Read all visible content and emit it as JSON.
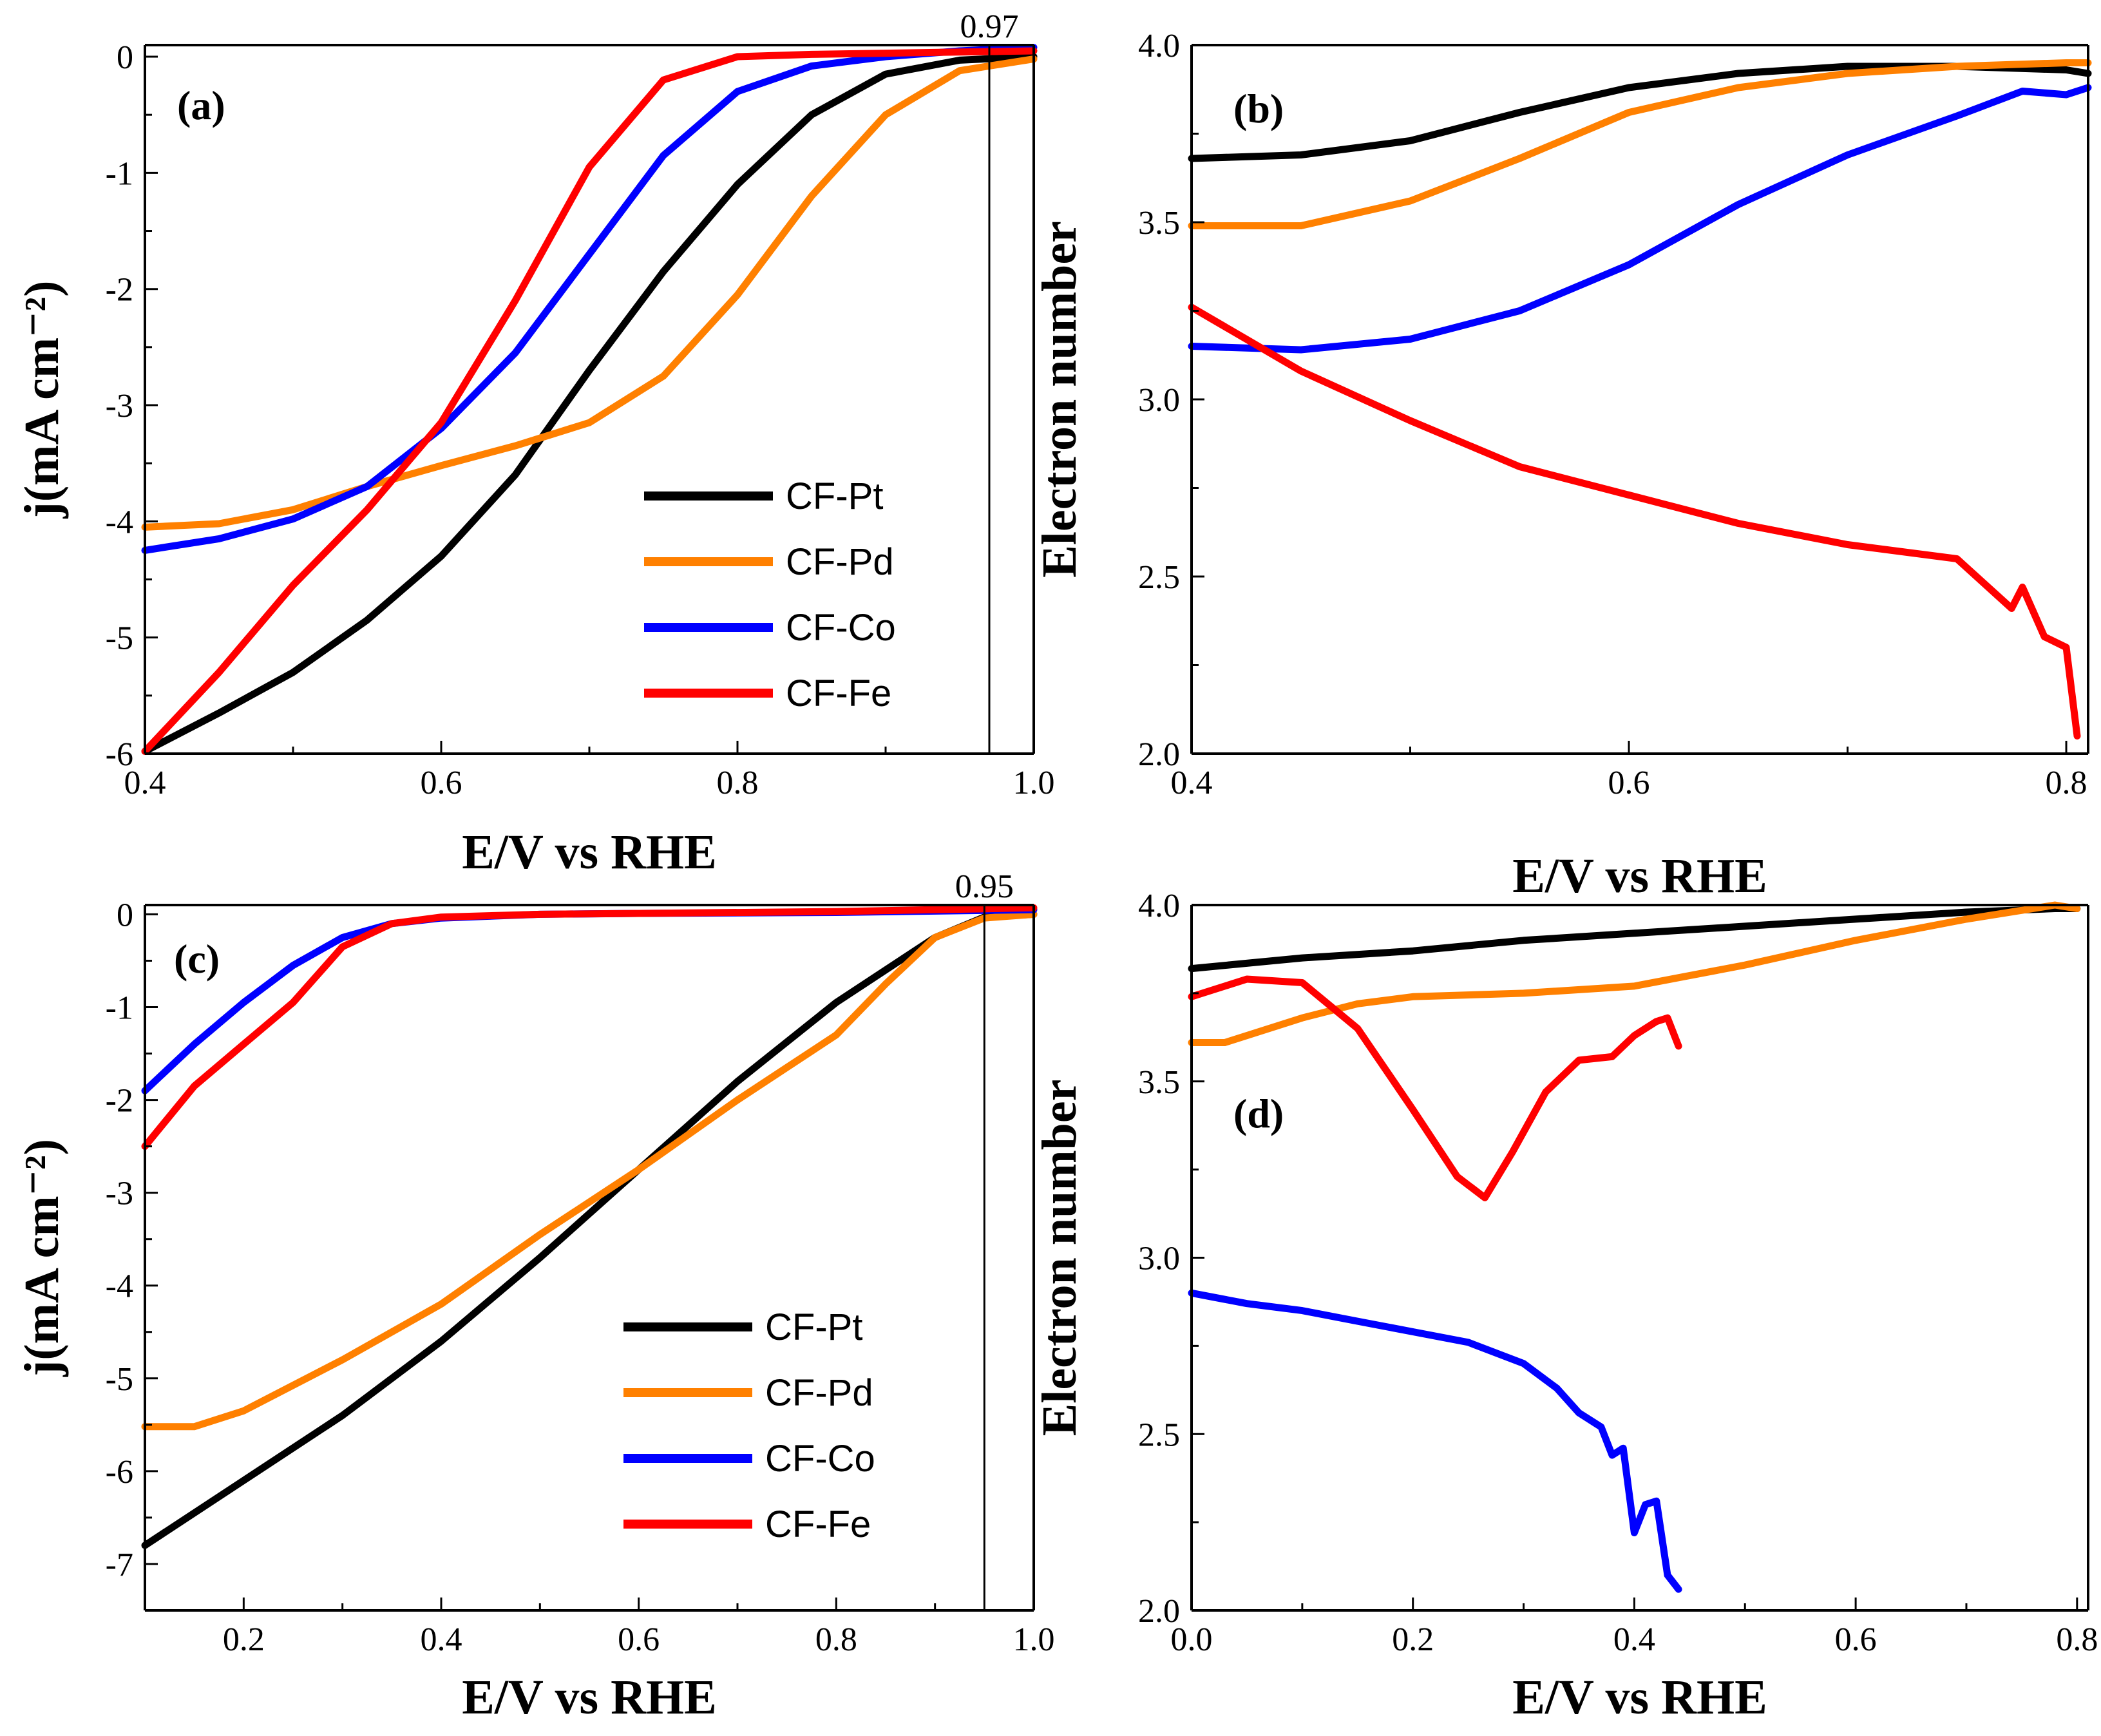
{
  "colors": {
    "black": "#000000",
    "orange": "#ff8000",
    "blue": "#0000ff",
    "red": "#ff0000"
  },
  "chart_data": [
    {
      "id": "a",
      "type": "line",
      "panel_label": "(a)",
      "xlabel": "E/V vs RHE",
      "ylabel": "j(mA cm⁻²)",
      "xlim": [
        0.4,
        1.0
      ],
      "ylim": [
        -6,
        0.1
      ],
      "xticks": [
        0.4,
        0.6,
        0.8,
        1.0
      ],
      "xtick_labels": [
        "0.4",
        "0.6",
        "0.8",
        "1.0"
      ],
      "yticks": [
        0,
        -1,
        -2,
        -3,
        -4,
        -5,
        -6
      ],
      "ytick_labels": [
        "0",
        "-1",
        "-2",
        "-3",
        "-4",
        "-5",
        "-6"
      ],
      "legend": [
        "CF-Pt",
        "CF-Pd",
        "CF-Co",
        "CF-Fe"
      ],
      "annotation": {
        "x": 0.97,
        "text": "0.97"
      },
      "series": [
        {
          "name": "CF-Pt",
          "color": "black",
          "x": [
            0.4,
            0.45,
            0.5,
            0.55,
            0.6,
            0.65,
            0.7,
            0.75,
            0.8,
            0.85,
            0.9,
            0.95,
            1.0
          ],
          "y": [
            -5.98,
            -5.65,
            -5.3,
            -4.85,
            -4.3,
            -3.6,
            -2.7,
            -1.85,
            -1.1,
            -0.5,
            -0.15,
            -0.03,
            0.0
          ]
        },
        {
          "name": "CF-Pd",
          "color": "orange",
          "x": [
            0.4,
            0.45,
            0.5,
            0.55,
            0.6,
            0.65,
            0.7,
            0.75,
            0.8,
            0.85,
            0.9,
            0.95,
            1.0
          ],
          "y": [
            -4.05,
            -4.02,
            -3.9,
            -3.7,
            -3.52,
            -3.35,
            -3.15,
            -2.75,
            -2.05,
            -1.2,
            -0.5,
            -0.12,
            -0.02
          ]
        },
        {
          "name": "CF-Co",
          "color": "blue",
          "x": [
            0.4,
            0.45,
            0.5,
            0.55,
            0.6,
            0.65,
            0.7,
            0.75,
            0.8,
            0.85,
            0.9,
            0.95,
            1.0
          ],
          "y": [
            -4.25,
            -4.15,
            -3.98,
            -3.7,
            -3.2,
            -2.55,
            -1.7,
            -0.85,
            -0.3,
            -0.08,
            0.0,
            0.05,
            0.08
          ]
        },
        {
          "name": "CF-Fe",
          "color": "red",
          "x": [
            0.4,
            0.45,
            0.5,
            0.55,
            0.6,
            0.65,
            0.7,
            0.75,
            0.8,
            0.85,
            0.9,
            0.95,
            1.0
          ],
          "y": [
            -5.98,
            -5.3,
            -4.55,
            -3.9,
            -3.15,
            -2.1,
            -0.95,
            -0.2,
            0.0,
            0.02,
            0.03,
            0.04,
            0.05
          ]
        }
      ]
    },
    {
      "id": "b",
      "type": "line",
      "panel_label": "(b)",
      "xlabel": "E/V vs RHE",
      "ylabel": "Electron number",
      "xlim": [
        0.4,
        0.81
      ],
      "ylim": [
        2.0,
        4.0
      ],
      "xticks": [
        0.4,
        0.6,
        0.8
      ],
      "xtick_labels": [
        "0.4",
        "0.6",
        "0.8"
      ],
      "yticks": [
        2.0,
        2.5,
        3.0,
        3.5,
        4.0
      ],
      "ytick_labels": [
        "2.0",
        "2.5",
        "3.0",
        "3.5",
        "4.0"
      ],
      "series": [
        {
          "name": "CF-Pt",
          "color": "black",
          "x": [
            0.4,
            0.45,
            0.5,
            0.55,
            0.6,
            0.65,
            0.7,
            0.75,
            0.8,
            0.81
          ],
          "y": [
            3.68,
            3.69,
            3.73,
            3.81,
            3.88,
            3.92,
            3.94,
            3.94,
            3.93,
            3.92
          ]
        },
        {
          "name": "CF-Pd",
          "color": "orange",
          "x": [
            0.4,
            0.45,
            0.5,
            0.55,
            0.6,
            0.65,
            0.7,
            0.75,
            0.8,
            0.81
          ],
          "y": [
            3.49,
            3.49,
            3.56,
            3.68,
            3.81,
            3.88,
            3.92,
            3.94,
            3.95,
            3.95
          ]
        },
        {
          "name": "CF-Co",
          "color": "blue",
          "x": [
            0.4,
            0.45,
            0.5,
            0.55,
            0.6,
            0.65,
            0.7,
            0.75,
            0.78,
            0.8,
            0.81
          ],
          "y": [
            3.15,
            3.14,
            3.17,
            3.25,
            3.38,
            3.55,
            3.69,
            3.8,
            3.87,
            3.86,
            3.88
          ]
        },
        {
          "name": "CF-Fe",
          "color": "red",
          "x": [
            0.4,
            0.45,
            0.5,
            0.55,
            0.6,
            0.65,
            0.7,
            0.75,
            0.775,
            0.78,
            0.79,
            0.8,
            0.805
          ],
          "y": [
            3.26,
            3.08,
            2.94,
            2.81,
            2.73,
            2.65,
            2.59,
            2.55,
            2.41,
            2.47,
            2.33,
            2.3,
            2.05
          ]
        }
      ]
    },
    {
      "id": "c",
      "type": "line",
      "panel_label": "(c)",
      "xlabel": "E/V vs RHE",
      "ylabel": "j(mA cm⁻²)",
      "xlim": [
        0.1,
        1.0
      ],
      "ylim": [
        -7.5,
        0.1
      ],
      "xticks": [
        0.2,
        0.4,
        0.6,
        0.8,
        1.0
      ],
      "xtick_labels": [
        "0.2",
        "0.4",
        "0.6",
        "0.8",
        "1.0"
      ],
      "yticks": [
        0,
        -1,
        -2,
        -3,
        -4,
        -5,
        -6,
        -7
      ],
      "ytick_labels": [
        "0",
        "-1",
        "-2",
        "-3",
        "-4",
        "-5",
        "-6",
        "-7"
      ],
      "legend": [
        "CF-Pt",
        "CF-Pd",
        "CF-Co",
        "CF-Fe"
      ],
      "annotation": {
        "x": 0.95,
        "text": "0.95"
      },
      "series": [
        {
          "name": "CF-Pt",
          "color": "black",
          "x": [
            0.1,
            0.2,
            0.3,
            0.4,
            0.5,
            0.6,
            0.7,
            0.8,
            0.9,
            0.95,
            1.0
          ],
          "y": [
            -6.8,
            -6.1,
            -5.4,
            -4.6,
            -3.7,
            -2.75,
            -1.8,
            -0.95,
            -0.25,
            -0.03,
            0.0
          ]
        },
        {
          "name": "CF-Pd",
          "color": "orange",
          "x": [
            0.1,
            0.15,
            0.2,
            0.3,
            0.4,
            0.5,
            0.6,
            0.7,
            0.8,
            0.85,
            0.9,
            0.95,
            1.0
          ],
          "y": [
            -5.52,
            -5.52,
            -5.35,
            -4.8,
            -4.2,
            -3.45,
            -2.75,
            -2.0,
            -1.3,
            -0.75,
            -0.25,
            -0.04,
            0.0
          ]
        },
        {
          "name": "CF-Co",
          "color": "blue",
          "x": [
            0.1,
            0.15,
            0.2,
            0.25,
            0.3,
            0.35,
            0.4,
            0.5,
            0.6,
            0.8,
            1.0
          ],
          "y": [
            -1.9,
            -1.4,
            -0.95,
            -0.55,
            -0.25,
            -0.1,
            -0.04,
            0.0,
            0.01,
            0.02,
            0.05
          ]
        },
        {
          "name": "CF-Fe",
          "color": "red",
          "x": [
            0.1,
            0.15,
            0.2,
            0.25,
            0.3,
            0.35,
            0.4,
            0.5,
            0.6,
            0.8,
            1.0
          ],
          "y": [
            -2.5,
            -1.85,
            -1.4,
            -0.95,
            -0.35,
            -0.1,
            -0.03,
            0.0,
            0.01,
            0.03,
            0.07
          ]
        }
      ]
    },
    {
      "id": "d",
      "type": "line",
      "panel_label": "(d)",
      "xlabel": "E/V vs RHE",
      "ylabel": "Electron number",
      "xlim": [
        0.0,
        0.81
      ],
      "ylim": [
        2.0,
        4.0
      ],
      "xticks": [
        0.0,
        0.2,
        0.4,
        0.6,
        0.8
      ],
      "xtick_labels": [
        "0.0",
        "0.2",
        "0.4",
        "0.6",
        "0.8"
      ],
      "yticks": [
        2.0,
        2.5,
        3.0,
        3.5,
        4.0
      ],
      "ytick_labels": [
        "2.0",
        "2.5",
        "3.0",
        "3.5",
        "4.0"
      ],
      "series": [
        {
          "name": "CF-Pt",
          "color": "black",
          "x": [
            0.0,
            0.1,
            0.2,
            0.3,
            0.4,
            0.5,
            0.6,
            0.7,
            0.78,
            0.8
          ],
          "y": [
            3.82,
            3.85,
            3.87,
            3.9,
            3.92,
            3.94,
            3.96,
            3.98,
            3.99,
            3.99
          ]
        },
        {
          "name": "CF-Pd",
          "color": "orange",
          "x": [
            0.0,
            0.03,
            0.1,
            0.15,
            0.2,
            0.3,
            0.4,
            0.5,
            0.6,
            0.7,
            0.78,
            0.8
          ],
          "y": [
            3.61,
            3.61,
            3.68,
            3.72,
            3.74,
            3.75,
            3.77,
            3.83,
            3.9,
            3.96,
            4.0,
            3.99
          ]
        },
        {
          "name": "CF-Fe",
          "color": "red",
          "x": [
            0.0,
            0.05,
            0.1,
            0.15,
            0.2,
            0.24,
            0.265,
            0.29,
            0.32,
            0.35,
            0.38,
            0.4,
            0.42,
            0.43,
            0.44
          ],
          "y": [
            3.74,
            3.79,
            3.78,
            3.65,
            3.42,
            3.23,
            3.17,
            3.3,
            3.47,
            3.56,
            3.57,
            3.63,
            3.67,
            3.68,
            3.6
          ]
        },
        {
          "name": "CF-Co",
          "color": "blue",
          "x": [
            0.0,
            0.05,
            0.1,
            0.15,
            0.2,
            0.25,
            0.3,
            0.33,
            0.35,
            0.37,
            0.38,
            0.39,
            0.4,
            0.41,
            0.42,
            0.43,
            0.44
          ],
          "y": [
            2.9,
            2.87,
            2.85,
            2.82,
            2.79,
            2.76,
            2.7,
            2.63,
            2.56,
            2.52,
            2.44,
            2.46,
            2.22,
            2.3,
            2.31,
            2.1,
            2.06
          ]
        }
      ]
    }
  ]
}
